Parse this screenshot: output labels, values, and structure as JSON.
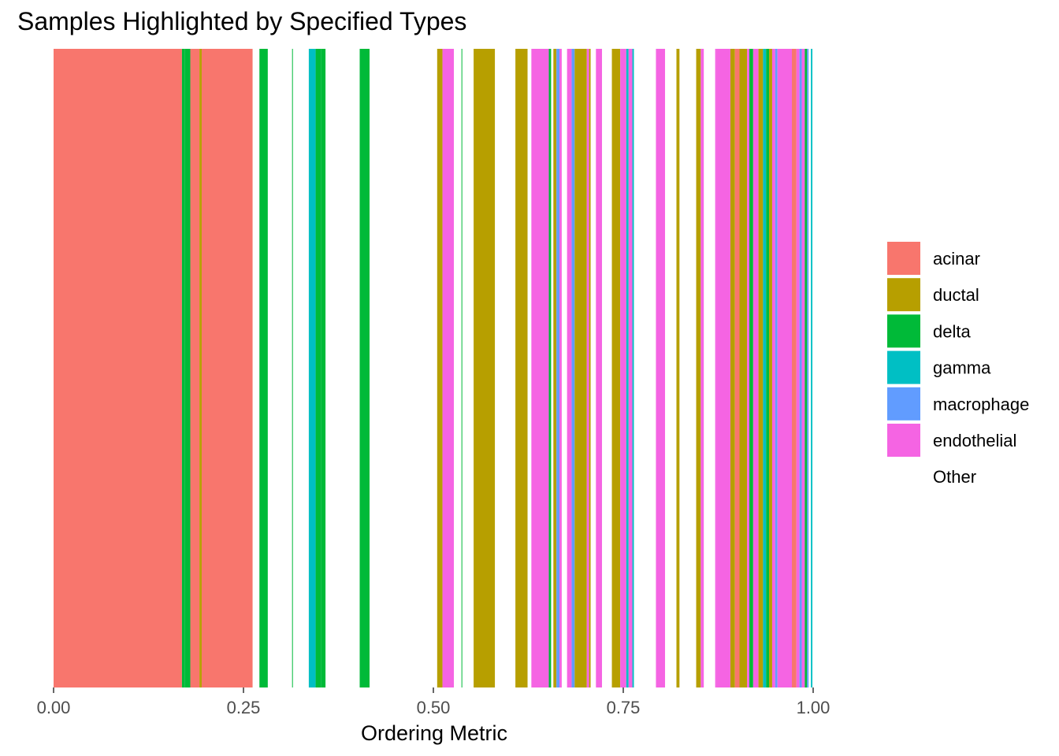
{
  "chart_data": {
    "type": "bar",
    "title": "Samples Highlighted by Specified Types",
    "xlabel": "Ordering Metric",
    "ylabel": "",
    "xlim": [
      0,
      1
    ],
    "x_ticks": [
      0,
      0.25,
      0.5,
      0.75,
      1.0
    ],
    "x_tick_labels": [
      "0.00",
      "0.25",
      "0.50",
      "0.75",
      "1.00"
    ],
    "grid": false,
    "legend_position": "right",
    "legend": [
      {
        "label": "acinar",
        "color": "#F8766D"
      },
      {
        "label": "ductal",
        "color": "#B79F00"
      },
      {
        "label": "delta",
        "color": "#00BA38"
      },
      {
        "label": "gamma",
        "color": "#00BFC4"
      },
      {
        "label": "macrophage",
        "color": "#619CFF"
      },
      {
        "label": "endothelial",
        "color": "#F564E3"
      },
      {
        "label": "Other",
        "color": "#FFFFFF"
      }
    ],
    "segments": [
      {
        "x0": 0.0,
        "x1": 0.169,
        "type": "acinar"
      },
      {
        "x0": 0.169,
        "x1": 0.173,
        "type": "delta"
      },
      {
        "x0": 0.173,
        "x1": 0.18,
        "type": "delta"
      },
      {
        "x0": 0.18,
        "x1": 0.192,
        "type": "acinar"
      },
      {
        "x0": 0.192,
        "x1": 0.195,
        "type": "ductal"
      },
      {
        "x0": 0.195,
        "x1": 0.262,
        "type": "acinar"
      },
      {
        "x0": 0.271,
        "x1": 0.282,
        "type": "delta"
      },
      {
        "x0": 0.314,
        "x1": 0.315,
        "type": "delta"
      },
      {
        "x0": 0.336,
        "x1": 0.345,
        "type": "gamma"
      },
      {
        "x0": 0.345,
        "x1": 0.352,
        "type": "delta"
      },
      {
        "x0": 0.352,
        "x1": 0.358,
        "type": "delta"
      },
      {
        "x0": 0.403,
        "x1": 0.416,
        "type": "delta"
      },
      {
        "x0": 0.505,
        "x1": 0.512,
        "type": "ductal"
      },
      {
        "x0": 0.512,
        "x1": 0.527,
        "type": "endothelial"
      },
      {
        "x0": 0.537,
        "x1": 0.538,
        "type": "delta"
      },
      {
        "x0": 0.553,
        "x1": 0.581,
        "type": "ductal"
      },
      {
        "x0": 0.608,
        "x1": 0.624,
        "type": "ductal"
      },
      {
        "x0": 0.629,
        "x1": 0.652,
        "type": "endothelial"
      },
      {
        "x0": 0.652,
        "x1": 0.655,
        "type": "delta"
      },
      {
        "x0": 0.658,
        "x1": 0.662,
        "type": "ductal"
      },
      {
        "x0": 0.662,
        "x1": 0.666,
        "type": "macrophage"
      },
      {
        "x0": 0.666,
        "x1": 0.669,
        "type": "endothelial"
      },
      {
        "x0": 0.676,
        "x1": 0.682,
        "type": "endothelial"
      },
      {
        "x0": 0.682,
        "x1": 0.686,
        "type": "macrophage"
      },
      {
        "x0": 0.686,
        "x1": 0.702,
        "type": "ductal"
      },
      {
        "x0": 0.702,
        "x1": 0.705,
        "type": "endothelial"
      },
      {
        "x0": 0.705,
        "x1": 0.707,
        "type": "ductal"
      },
      {
        "x0": 0.714,
        "x1": 0.722,
        "type": "endothelial"
      },
      {
        "x0": 0.735,
        "x1": 0.746,
        "type": "ductal"
      },
      {
        "x0": 0.746,
        "x1": 0.754,
        "type": "endothelial"
      },
      {
        "x0": 0.754,
        "x1": 0.757,
        "type": "gamma"
      },
      {
        "x0": 0.757,
        "x1": 0.762,
        "type": "endothelial"
      },
      {
        "x0": 0.762,
        "x1": 0.764,
        "type": "gamma"
      },
      {
        "x0": 0.793,
        "x1": 0.805,
        "type": "endothelial"
      },
      {
        "x0": 0.82,
        "x1": 0.824,
        "type": "ductal"
      },
      {
        "x0": 0.846,
        "x1": 0.852,
        "type": "ductal"
      },
      {
        "x0": 0.852,
        "x1": 0.856,
        "type": "endothelial"
      },
      {
        "x0": 0.871,
        "x1": 0.873,
        "type": "endothelial"
      },
      {
        "x0": 0.873,
        "x1": 0.891,
        "type": "endothelial"
      },
      {
        "x0": 0.891,
        "x1": 0.897,
        "type": "ductal"
      },
      {
        "x0": 0.897,
        "x1": 0.903,
        "type": "acinar"
      },
      {
        "x0": 0.903,
        "x1": 0.913,
        "type": "ductal"
      },
      {
        "x0": 0.913,
        "x1": 0.916,
        "type": "endothelial"
      },
      {
        "x0": 0.916,
        "x1": 0.921,
        "type": "delta"
      },
      {
        "x0": 0.921,
        "x1": 0.928,
        "type": "endothelial"
      },
      {
        "x0": 0.928,
        "x1": 0.934,
        "type": "ductal"
      },
      {
        "x0": 0.934,
        "x1": 0.938,
        "type": "gamma"
      },
      {
        "x0": 0.938,
        "x1": 0.942,
        "type": "delta"
      },
      {
        "x0": 0.942,
        "x1": 0.946,
        "type": "ductal"
      },
      {
        "x0": 0.946,
        "x1": 0.95,
        "type": "endothelial"
      },
      {
        "x0": 0.95,
        "x1": 0.953,
        "type": "macrophage"
      },
      {
        "x0": 0.953,
        "x1": 0.972,
        "type": "endothelial"
      },
      {
        "x0": 0.972,
        "x1": 0.978,
        "type": "acinar"
      },
      {
        "x0": 0.978,
        "x1": 0.982,
        "type": "endothelial"
      },
      {
        "x0": 0.982,
        "x1": 0.985,
        "type": "macrophage"
      },
      {
        "x0": 0.985,
        "x1": 0.989,
        "type": "endothelial"
      },
      {
        "x0": 0.989,
        "x1": 0.992,
        "type": "delta"
      },
      {
        "x0": 0.992,
        "x1": 0.994,
        "type": "macrophage"
      },
      {
        "x0": 0.997,
        "x1": 0.999,
        "type": "gamma"
      }
    ]
  }
}
